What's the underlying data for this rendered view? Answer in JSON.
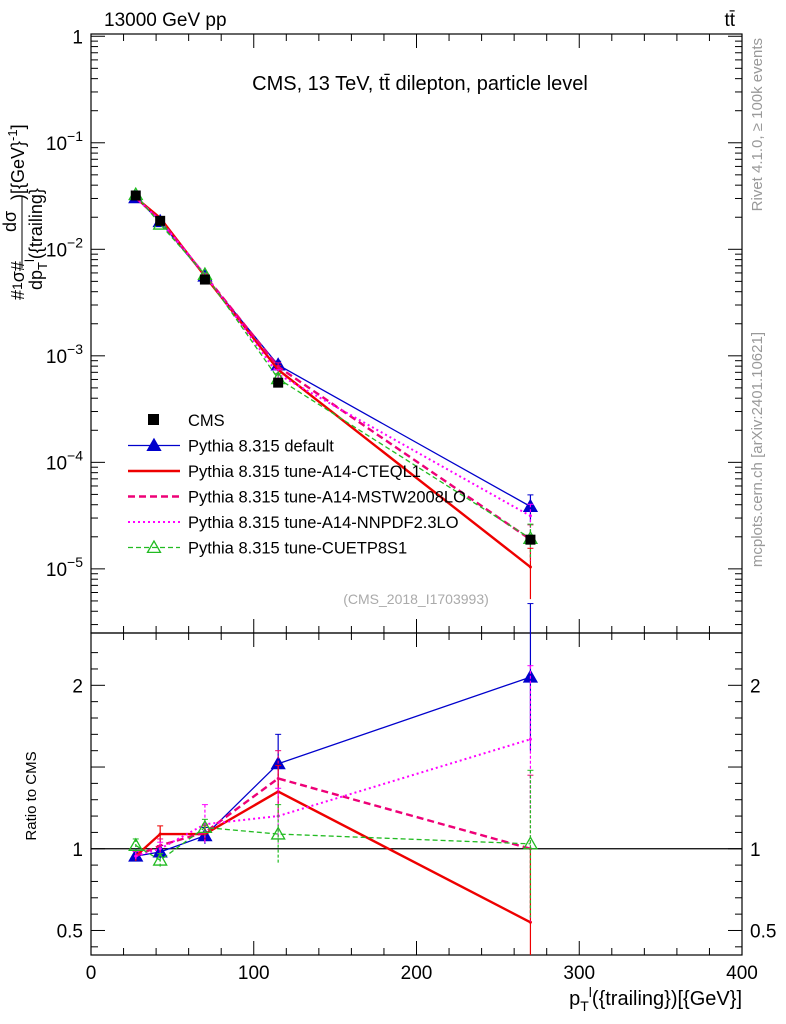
{
  "header": {
    "energy_label": "13000 GeV pp",
    "process_label": "tt̄",
    "main_title": "CMS, 13 TeV, tt̄ dilepton, particle level",
    "analysis_tag": "(CMS_2018_I1703993)"
  },
  "side_labels": {
    "rivet": "Rivet 4.1.0, ≥ 100k events",
    "mcplots": "mcplots.cern.ch [arXiv:2401.10621]"
  },
  "chart_data": [
    {
      "type": "line",
      "scale": "log",
      "title": "CMS, 13 TeV, tt̄ dilepton, particle level",
      "ylabel": "#1/σ# dσ/dp_T^l({trailing})[{GeV}^-1]",
      "ylim": [
        2.5e-06,
        1.05
      ],
      "xlim": [
        0,
        400
      ],
      "yticks": [
        {
          "value": 1,
          "label": "1"
        },
        {
          "value": 0.1,
          "label": "10",
          "exp": "−1"
        },
        {
          "value": 0.01,
          "label": "10",
          "exp": "−2"
        },
        {
          "value": 0.001,
          "label": "10",
          "exp": "−3"
        },
        {
          "value": 0.0001,
          "label": "10",
          "exp": "−4"
        },
        {
          "value": 1e-05,
          "label": "10",
          "exp": "−5"
        }
      ],
      "x": [
        27.5,
        42.5,
        70,
        115,
        270
      ],
      "series": [
        {
          "name": "CMS",
          "color": "#000000",
          "style": "data",
          "values": [
            0.032,
            0.0185,
            0.0052,
            0.00056,
            1.88e-05
          ],
          "err": [
            0.0012,
            0.0008,
            0.0002,
            5e-05,
            9e-07
          ]
        },
        {
          "name": "Pythia 8.315 default",
          "color": "#0000cc",
          "style": "solid-triangle",
          "values": [
            0.0305,
            0.0182,
            0.0056,
            0.00082,
            3.85e-05
          ],
          "err": [
            0.0008,
            0.0005,
            0.0002,
            7e-05,
            1.1e-05
          ]
        },
        {
          "name": "Pythia 8.315 tune-A14-CTEQL1",
          "color": "#ee0000",
          "style": "solid-thick",
          "values": [
            0.0305,
            0.0197,
            0.0056,
            0.00074,
            1.04e-05
          ],
          "err": [
            0.0008,
            0.0005,
            0.0002,
            7e-05,
            5.2e-06
          ]
        },
        {
          "name": "Pythia 8.315 tune-A14-MSTW2008LO",
          "color": "#ee0077",
          "style": "dashed-thick",
          "values": [
            0.0305,
            0.0188,
            0.0057,
            0.00079,
            1.89e-05
          ],
          "err": [
            0.0008,
            0.0005,
            0.0002,
            7e-05,
            7e-06
          ]
        },
        {
          "name": "Pythia 8.315 tune-A14-NNPDF2.3LO",
          "color": "#ff00ff",
          "style": "dotted",
          "values": [
            0.0305,
            0.0186,
            0.0058,
            0.00067,
            3.14e-05
          ],
          "err": [
            0.0008,
            0.0005,
            0.0002,
            7e-05,
            9e-06
          ]
        },
        {
          "name": "Pythia 8.315 tune-CUETP8S1",
          "color": "#22bb22",
          "style": "dashed-open-triangle",
          "values": [
            0.0326,
            0.0172,
            0.0058,
            0.00061,
            1.93e-05
          ],
          "err": [
            0.0008,
            0.0005,
            0.0002,
            7e-05,
            7e-06
          ]
        }
      ]
    },
    {
      "type": "line",
      "scale": "linear",
      "ylabel": "Ratio to CMS",
      "xlabel": "p_T^l({trailing})[{GeV}]",
      "ylim": [
        0.35,
        2.32
      ],
      "xlim": [
        0,
        400
      ],
      "yticks": [
        {
          "value": 0.5,
          "label": "0.5"
        },
        {
          "value": 1,
          "label": "1"
        },
        {
          "value": 2,
          "label": "2"
        }
      ],
      "xticks": [
        {
          "value": 0,
          "label": "0"
        },
        {
          "value": 100,
          "label": "100"
        },
        {
          "value": 200,
          "label": "200"
        },
        {
          "value": 300,
          "label": "300"
        },
        {
          "value": 400,
          "label": "400"
        }
      ],
      "bin_edges": [
        20,
        35,
        50,
        90,
        140,
        400
      ],
      "x": [
        27.5,
        42.5,
        70,
        115,
        270
      ],
      "reference": 1,
      "series": [
        {
          "name": "CMS",
          "color": "#000000",
          "values": [
            1,
            1,
            1,
            1,
            1
          ],
          "err": [
            0,
            0,
            0,
            0,
            0
          ]
        },
        {
          "name": "Pythia 8.315 default",
          "color": "#0000cc",
          "values": [
            0.955,
            0.98,
            1.08,
            1.52,
            2.05
          ],
          "err": [
            0.03,
            0.04,
            0.05,
            0.18,
            0.45
          ]
        },
        {
          "name": "Pythia 8.315 tune-A14-CTEQL1",
          "color": "#ee0000",
          "values": [
            0.955,
            1.09,
            1.09,
            1.35,
            0.55
          ],
          "err": [
            0.03,
            0.05,
            0.05,
            0.16,
            0.45
          ]
        },
        {
          "name": "Pythia 8.315 tune-A14-MSTW2008LO",
          "color": "#ee0077",
          "values": [
            0.955,
            1.02,
            1.1,
            1.43,
            1.0
          ],
          "err": [
            0.03,
            0.04,
            0.05,
            0.17,
            0.45
          ]
        },
        {
          "name": "Pythia 8.315 tune-A14-NNPDF2.3LO",
          "color": "#ff00ff",
          "values": [
            0.955,
            1.0,
            1.15,
            1.2,
            1.67
          ],
          "err": [
            0.03,
            0.04,
            0.12,
            0.17,
            0.45
          ]
        },
        {
          "name": "Pythia 8.315 tune-CUETP8S1",
          "color": "#22bb22",
          "values": [
            1.02,
            0.93,
            1.13,
            1.09,
            1.03
          ],
          "err": [
            0.04,
            0.04,
            0.05,
            0.18,
            0.45
          ]
        }
      ]
    }
  ]
}
